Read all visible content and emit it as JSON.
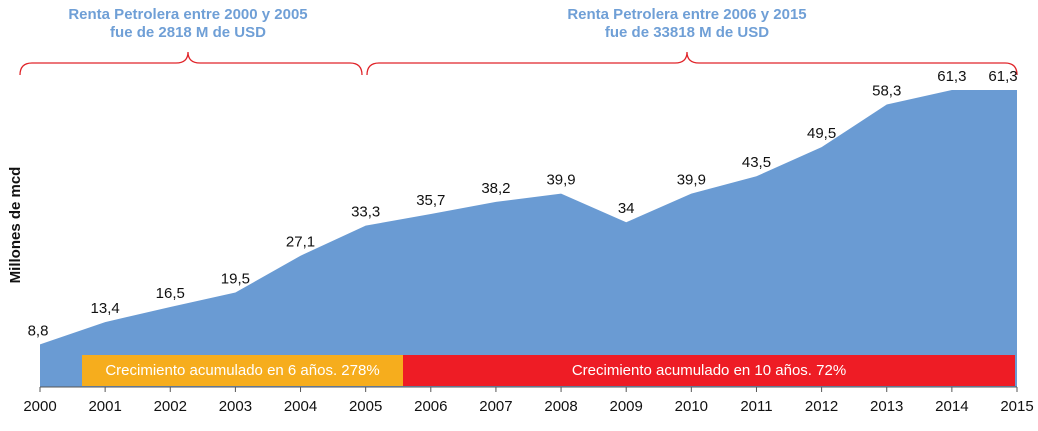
{
  "chart_data": {
    "type": "area",
    "ylabel": "Millones de mcd",
    "categories": [
      "2000",
      "2001",
      "2002",
      "2003",
      "2004",
      "2005",
      "2006",
      "2007",
      "2008",
      "2009",
      "2010",
      "2011",
      "2012",
      "2013",
      "2014",
      "2015"
    ],
    "values": [
      8.8,
      13.4,
      16.5,
      19.5,
      27.1,
      33.3,
      35.7,
      38.2,
      39.9,
      34,
      39.9,
      43.5,
      49.5,
      58.3,
      61.3,
      61.3
    ],
    "value_labels": [
      "8,8",
      "13,4",
      "16,5",
      "19,5",
      "27,1",
      "33,3",
      "35,7",
      "38,2",
      "39,9",
      "34",
      "39,9",
      "43,5",
      "49,5",
      "58,3",
      "61,3",
      "61,3"
    ],
    "color": "#6a9bd3",
    "ylim": [
      0,
      62
    ],
    "annotations": [
      {
        "lines": [
          "Renta Petrolera entre 2000 y 2005",
          "fue de 2818 M de USD"
        ]
      },
      {
        "lines": [
          "Renta Petrolera entre 2006 y 2015",
          "fue de 33818 M de USD"
        ]
      }
    ],
    "bands": [
      {
        "text": "Crecimiento acumulado en 6 años. 278%",
        "color": "#f6ad1d"
      },
      {
        "text": "Crecimiento acumulado en 10 años. 72%",
        "color": "#ee1c25"
      }
    ]
  }
}
